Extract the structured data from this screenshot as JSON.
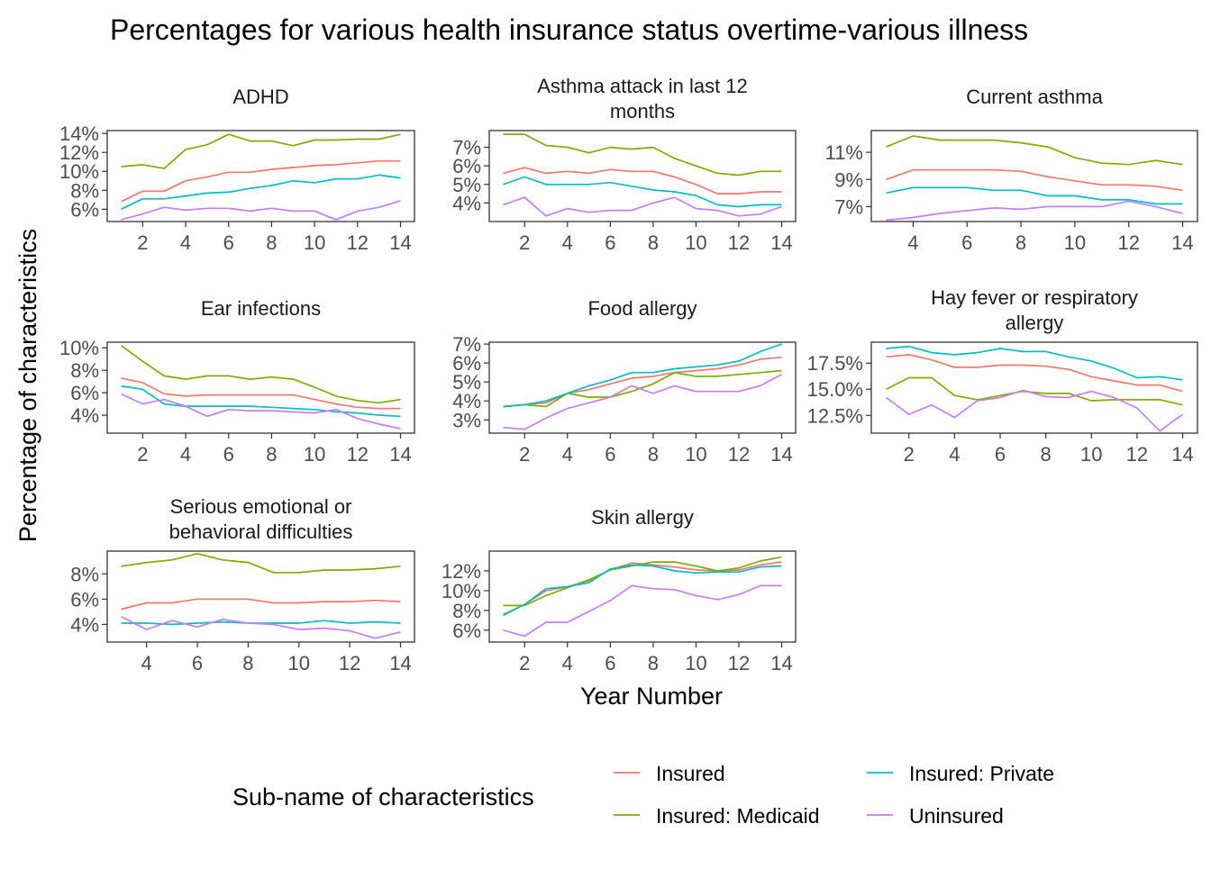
{
  "chart_data": {
    "type": "line",
    "title": "Percentages for various health insurance status overtime-various illness",
    "xlabel": "Year Number",
    "ylabel": "Percentage of characteristics",
    "legend": {
      "title": "Sub-name of characteristics",
      "placement": "bottom",
      "entries": [
        {
          "name": "Insured",
          "color": "#F8766D"
        },
        {
          "name": "Insured: Private",
          "color": "#00BFC4"
        },
        {
          "name": "Insured: Medicaid",
          "color": "#7CAE00"
        },
        {
          "name": "Uninsured",
          "color": "#C77CFF"
        }
      ]
    },
    "colors": {
      "Insured": "#F8766D",
      "Insured: Medicaid": "#7CAE00",
      "Insured: Private": "#00BFC4",
      "Uninsured": "#C77CFF"
    },
    "panels": [
      {
        "title": [
          "ADHD"
        ],
        "xlim": [
          0.35,
          14.65
        ],
        "ylim": [
          4.7,
          14.3
        ],
        "xticks": [
          2,
          4,
          6,
          8,
          10,
          12,
          14
        ],
        "yticks": [
          6,
          8,
          10,
          12,
          14
        ],
        "ytick_labels": [
          "6%",
          "8%",
          "10%",
          "12%",
          "14%"
        ],
        "x": [
          1,
          2,
          3,
          4,
          5,
          6,
          7,
          8,
          9,
          10,
          11,
          12,
          13,
          14
        ],
        "series": [
          {
            "name": "Insured",
            "values": [
              6.8,
              7.9,
              7.9,
              9.0,
              9.4,
              9.9,
              9.9,
              10.2,
              10.4,
              10.6,
              10.7,
              10.9,
              11.1,
              11.1
            ]
          },
          {
            "name": "Insured: Medicaid",
            "values": [
              10.5,
              10.7,
              10.3,
              12.3,
              12.8,
              13.9,
              13.2,
              13.2,
              12.7,
              13.3,
              13.3,
              13.4,
              13.4,
              13.9
            ]
          },
          {
            "name": "Insured: Private",
            "values": [
              6.0,
              7.1,
              7.1,
              7.4,
              7.7,
              7.8,
              8.2,
              8.5,
              9.0,
              8.8,
              9.2,
              9.2,
              9.6,
              9.3
            ]
          },
          {
            "name": "Uninsured",
            "values": [
              4.9,
              5.5,
              6.2,
              5.9,
              6.1,
              6.1,
              5.8,
              6.1,
              5.8,
              5.8,
              4.9,
              5.8,
              6.2,
              6.9
            ]
          }
        ]
      },
      {
        "title": [
          "Asthma attack in last 12",
          "months"
        ],
        "xlim": [
          0.35,
          14.65
        ],
        "ylim": [
          3.0,
          7.9
        ],
        "xticks": [
          2,
          4,
          6,
          8,
          10,
          12,
          14
        ],
        "yticks": [
          4,
          5,
          6,
          7
        ],
        "ytick_labels": [
          "4%",
          "5%",
          "6%",
          "7%"
        ],
        "x": [
          1,
          2,
          3,
          4,
          5,
          6,
          7,
          8,
          9,
          10,
          11,
          12,
          13,
          14
        ],
        "series": [
          {
            "name": "Insured",
            "values": [
              5.6,
              5.9,
              5.6,
              5.7,
              5.6,
              5.8,
              5.7,
              5.7,
              5.4,
              5.0,
              4.5,
              4.5,
              4.6,
              4.6
            ]
          },
          {
            "name": "Insured: Medicaid",
            "values": [
              7.7,
              7.7,
              7.1,
              7.0,
              6.7,
              7.0,
              6.9,
              7.0,
              6.4,
              6.0,
              5.6,
              5.5,
              5.7,
              5.7
            ]
          },
          {
            "name": "Insured: Private",
            "values": [
              5.0,
              5.4,
              5.0,
              5.0,
              5.0,
              5.1,
              4.9,
              4.7,
              4.6,
              4.4,
              3.9,
              3.8,
              3.9,
              3.9
            ]
          },
          {
            "name": "Uninsured",
            "values": [
              3.9,
              4.3,
              3.3,
              3.7,
              3.5,
              3.6,
              3.6,
              4.0,
              4.3,
              3.7,
              3.6,
              3.3,
              3.4,
              3.8
            ]
          }
        ]
      },
      {
        "title": [
          "Current asthma"
        ],
        "xlim": [
          2.45,
          14.55
        ],
        "ylim": [
          5.9,
          12.6
        ],
        "xticks": [
          4,
          6,
          8,
          10,
          12,
          14
        ],
        "yticks": [
          7,
          9,
          11
        ],
        "ytick_labels": [
          "7%",
          "9%",
          "11%"
        ],
        "x": [
          3,
          4,
          5,
          6,
          7,
          8,
          9,
          10,
          11,
          12,
          13,
          14
        ],
        "series": [
          {
            "name": "Insured",
            "values": [
              9.0,
              9.7,
              9.7,
              9.7,
              9.7,
              9.6,
              9.2,
              8.9,
              8.6,
              8.6,
              8.5,
              8.2
            ]
          },
          {
            "name": "Insured: Medicaid",
            "values": [
              11.4,
              12.2,
              11.9,
              11.9,
              11.9,
              11.7,
              11.4,
              10.6,
              10.2,
              10.1,
              10.4,
              10.1
            ]
          },
          {
            "name": "Insured: Private",
            "values": [
              8.0,
              8.4,
              8.4,
              8.4,
              8.2,
              8.2,
              7.8,
              7.8,
              7.5,
              7.5,
              7.2,
              7.2
            ]
          },
          {
            "name": "Uninsured",
            "values": [
              6.0,
              6.2,
              6.5,
              6.7,
              6.9,
              6.8,
              7.0,
              7.0,
              7.0,
              7.4,
              7.0,
              6.5
            ]
          }
        ]
      },
      {
        "title": [
          "Ear infections"
        ],
        "xlim": [
          0.35,
          14.65
        ],
        "ylim": [
          2.4,
          10.5
        ],
        "xticks": [
          2,
          4,
          6,
          8,
          10,
          12,
          14
        ],
        "yticks": [
          4,
          6,
          8,
          10
        ],
        "ytick_labels": [
          "4%",
          "6%",
          "8%",
          "10%"
        ],
        "x": [
          1,
          2,
          3,
          4,
          5,
          6,
          7,
          8,
          9,
          10,
          11,
          12,
          13,
          14
        ],
        "series": [
          {
            "name": "Insured",
            "values": [
              7.3,
              6.9,
              5.9,
              5.7,
              5.8,
              5.8,
              5.8,
              5.8,
              5.8,
              5.4,
              5.0,
              4.7,
              4.6,
              4.6
            ]
          },
          {
            "name": "Insured: Medicaid",
            "values": [
              10.2,
              8.8,
              7.5,
              7.2,
              7.5,
              7.5,
              7.2,
              7.4,
              7.2,
              6.5,
              5.7,
              5.3,
              5.1,
              5.4
            ]
          },
          {
            "name": "Insured: Private",
            "values": [
              6.6,
              6.3,
              5.0,
              4.8,
              4.8,
              4.8,
              4.8,
              4.7,
              4.6,
              4.5,
              4.3,
              4.2,
              4.0,
              3.9
            ]
          },
          {
            "name": "Uninsured",
            "values": [
              5.9,
              5.0,
              5.4,
              4.8,
              3.9,
              4.5,
              4.4,
              4.4,
              4.3,
              4.2,
              4.5,
              3.7,
              3.2,
              2.8
            ]
          }
        ]
      },
      {
        "title": [
          "Food allergy"
        ],
        "xlim": [
          0.35,
          14.65
        ],
        "ylim": [
          2.3,
          7.1
        ],
        "xticks": [
          2,
          4,
          6,
          8,
          10,
          12,
          14
        ],
        "yticks": [
          3,
          4,
          5,
          6,
          7
        ],
        "ytick_labels": [
          "3%",
          "4%",
          "5%",
          "6%",
          "7%"
        ],
        "x": [
          1,
          2,
          3,
          4,
          5,
          6,
          7,
          8,
          9,
          10,
          11,
          12,
          13,
          14
        ],
        "series": [
          {
            "name": "Insured",
            "values": [
              3.7,
              3.8,
              3.9,
              4.4,
              4.6,
              4.9,
              5.2,
              5.3,
              5.5,
              5.6,
              5.7,
              5.9,
              6.2,
              6.3
            ]
          },
          {
            "name": "Insured: Medicaid",
            "values": [
              3.7,
              3.8,
              3.7,
              4.4,
              4.2,
              4.2,
              4.5,
              4.9,
              5.5,
              5.3,
              5.3,
              5.4,
              5.5,
              5.6
            ]
          },
          {
            "name": "Insured: Private",
            "values": [
              3.7,
              3.8,
              4.0,
              4.4,
              4.8,
              5.1,
              5.5,
              5.5,
              5.7,
              5.8,
              5.9,
              6.1,
              6.6,
              7.0
            ]
          },
          {
            "name": "Uninsured",
            "values": [
              2.6,
              2.5,
              3.1,
              3.6,
              3.9,
              4.2,
              4.8,
              4.4,
              4.8,
              4.5,
              4.5,
              4.5,
              4.8,
              5.4
            ]
          }
        ]
      },
      {
        "title": [
          "Hay fever or respiratory",
          "allergy"
        ],
        "xlim": [
          0.35,
          14.65
        ],
        "ylim": [
          10.8,
          19.5
        ],
        "xticks": [
          2,
          4,
          6,
          8,
          10,
          12,
          14
        ],
        "yticks": [
          12.5,
          15.0,
          17.5
        ],
        "ytick_labels": [
          "12.5%",
          "15.0%",
          "17.5%"
        ],
        "x": [
          1,
          2,
          3,
          4,
          5,
          6,
          7,
          8,
          9,
          10,
          11,
          12,
          13,
          14
        ],
        "series": [
          {
            "name": "Insured",
            "values": [
              18.1,
              18.3,
              17.8,
              17.1,
              17.1,
              17.3,
              17.3,
              17.2,
              16.9,
              16.2,
              15.8,
              15.4,
              15.4,
              14.8
            ]
          },
          {
            "name": "Insured: Medicaid",
            "values": [
              15.0,
              16.1,
              16.1,
              14.4,
              14.0,
              14.4,
              14.8,
              14.6,
              14.6,
              13.9,
              14.0,
              14.0,
              14.0,
              13.5
            ]
          },
          {
            "name": "Insured: Private",
            "values": [
              18.9,
              19.1,
              18.5,
              18.3,
              18.5,
              18.9,
              18.6,
              18.6,
              18.1,
              17.7,
              17.0,
              16.1,
              16.2,
              15.9
            ]
          },
          {
            "name": "Uninsured",
            "values": [
              14.2,
              12.6,
              13.5,
              12.3,
              13.9,
              14.2,
              14.9,
              14.3,
              14.2,
              14.8,
              14.2,
              13.2,
              11.0,
              12.6
            ]
          }
        ]
      },
      {
        "title": [
          "Serious emotional or",
          "behavioral difficulties"
        ],
        "xlim": [
          2.45,
          14.55
        ],
        "ylim": [
          2.6,
          9.8
        ],
        "xticks": [
          4,
          6,
          8,
          10,
          12,
          14
        ],
        "yticks": [
          4,
          6,
          8
        ],
        "ytick_labels": [
          "4%",
          "6%",
          "8%"
        ],
        "x": [
          3,
          4,
          5,
          6,
          7,
          8,
          9,
          10,
          11,
          12,
          13,
          14
        ],
        "series": [
          {
            "name": "Insured",
            "values": [
              5.2,
              5.7,
              5.7,
              6.0,
              6.0,
              6.0,
              5.7,
              5.7,
              5.8,
              5.8,
              5.9,
              5.8
            ]
          },
          {
            "name": "Insured: Medicaid",
            "values": [
              8.6,
              8.9,
              9.1,
              9.6,
              9.1,
              8.9,
              8.1,
              8.1,
              8.3,
              8.3,
              8.4,
              8.6
            ]
          },
          {
            "name": "Insured: Private",
            "values": [
              4.1,
              4.1,
              4.0,
              4.1,
              4.2,
              4.1,
              4.1,
              4.1,
              4.3,
              4.1,
              4.2,
              4.1
            ]
          },
          {
            "name": "Uninsured",
            "values": [
              4.6,
              3.6,
              4.3,
              3.8,
              4.4,
              4.1,
              4.0,
              3.6,
              3.7,
              3.5,
              2.9,
              3.4
            ]
          }
        ]
      },
      {
        "title": [
          "Skin allergy"
        ],
        "xlim": [
          0.35,
          14.65
        ],
        "ylim": [
          4.8,
          14.0
        ],
        "xticks": [
          2,
          4,
          6,
          8,
          10,
          12,
          14
        ],
        "yticks": [
          6,
          8,
          10,
          12
        ],
        "ytick_labels": [
          "6%",
          "8%",
          "10%",
          "12%"
        ],
        "x": [
          1,
          2,
          3,
          4,
          5,
          6,
          7,
          8,
          9,
          10,
          11,
          12,
          13,
          14
        ],
        "series": [
          {
            "name": "Insured",
            "values": [
              7.6,
              8.6,
              10.0,
              10.4,
              11.0,
              12.1,
              12.8,
              12.6,
              12.4,
              12.1,
              12.0,
              12.1,
              12.6,
              12.9
            ]
          },
          {
            "name": "Insured: Medicaid",
            "values": [
              8.5,
              8.5,
              9.5,
              10.3,
              11.1,
              12.1,
              12.5,
              12.9,
              12.9,
              12.5,
              12.0,
              12.3,
              13.0,
              13.4
            ]
          },
          {
            "name": "Insured: Private",
            "values": [
              7.5,
              8.6,
              10.2,
              10.4,
              10.8,
              12.2,
              12.6,
              12.5,
              12.0,
              11.8,
              11.9,
              11.9,
              12.4,
              12.5
            ]
          },
          {
            "name": "Uninsured",
            "values": [
              6.0,
              5.4,
              6.8,
              6.8,
              7.9,
              9.0,
              10.5,
              10.2,
              10.1,
              9.5,
              9.1,
              9.6,
              10.5,
              10.5
            ]
          }
        ]
      }
    ]
  }
}
